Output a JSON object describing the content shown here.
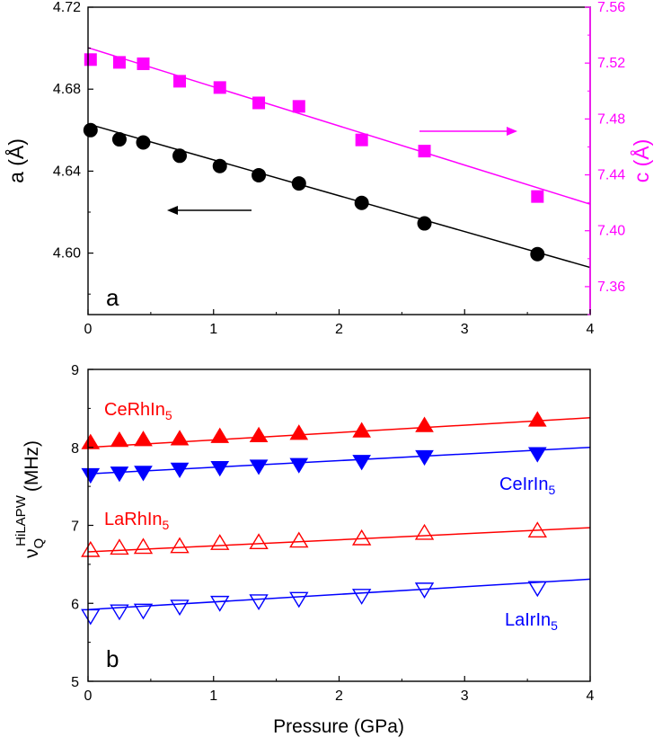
{
  "colors": {
    "black": "#000000",
    "magenta": "#ff00ff",
    "red": "#ff0000",
    "blue": "#0000ff"
  },
  "x_label": "Pressure (GPa)",
  "panel_a": {
    "label": "a",
    "left_label": "a (Å)",
    "right_label": "c (Å)",
    "left_ticks": [
      "4.60",
      "4.64",
      "4.68",
      "4.72"
    ],
    "right_ticks": [
      "7.36",
      "7.40",
      "7.44",
      "7.48",
      "7.52",
      "7.56"
    ]
  },
  "panel_b": {
    "label": "b",
    "y_label": "ν",
    "y_label_sub": "Q",
    "y_label_sup": "HiLAPW",
    "y_label_unit": "(MHz)",
    "y_ticks": [
      "5",
      "6",
      "7",
      "8",
      "9"
    ],
    "series_labels": {
      "cerhin5": {
        "base": "CeRhIn",
        "sub": "5"
      },
      "ceirin5": {
        "base": "CeIrIn",
        "sub": "5"
      },
      "larhin5": {
        "base": "LaRhIn",
        "sub": "5"
      },
      "lairin5": {
        "base": "LaIrIn",
        "sub": "5"
      }
    }
  },
  "x_ticks": [
    "0",
    "1",
    "2",
    "3",
    "4"
  ],
  "chart_data": [
    {
      "type": "scatter",
      "title": "",
      "xlabel": "Pressure (GPa)",
      "ylabel": "a (Å)",
      "y2label": "c (Å)",
      "xlim": [
        0,
        4
      ],
      "ylim": [
        4.57,
        4.72
      ],
      "y2lim": [
        7.34,
        7.56
      ],
      "x": [
        0.02,
        0.25,
        0.44,
        0.73,
        1.05,
        1.36,
        1.68,
        2.18,
        2.68,
        3.58
      ],
      "series": [
        {
          "axis": "left",
          "marker": "circle",
          "color": "#000000",
          "values": [
            4.66,
            4.6555,
            4.654,
            4.6475,
            4.6425,
            4.638,
            4.634,
            4.6245,
            4.6145,
            4.5995
          ],
          "fit": [
            [
              0,
              4.663
            ],
            [
              4,
              4.593
            ]
          ]
        },
        {
          "axis": "right",
          "marker": "square",
          "color": "#ff00ff",
          "values": [
            7.5225,
            7.5205,
            7.5195,
            7.507,
            7.5025,
            7.4915,
            7.489,
            7.465,
            7.457,
            7.4245
          ],
          "fit": [
            [
              0,
              7.531
            ],
            [
              4,
              7.419
            ]
          ]
        }
      ],
      "annotations": [
        "a"
      ]
    },
    {
      "type": "scatter",
      "title": "",
      "xlabel": "Pressure (GPa)",
      "ylabel": "ν_Q^HiLAPW (MHz)",
      "xlim": [
        0,
        4
      ],
      "ylim": [
        5,
        9
      ],
      "x": [
        0.02,
        0.25,
        0.44,
        0.73,
        1.05,
        1.36,
        1.68,
        2.18,
        2.68,
        3.58
      ],
      "series": [
        {
          "name": "CeRhIn5",
          "marker": "triangle-up-filled",
          "color": "#ff0000",
          "values": [
            8.06,
            8.09,
            8.1,
            8.11,
            8.14,
            8.15,
            8.18,
            8.21,
            8.28,
            8.35
          ],
          "fit": [
            [
              0,
              8.0
            ],
            [
              4,
              8.38
            ]
          ]
        },
        {
          "name": "CeIrIn5",
          "marker": "triangle-down-filled",
          "color": "#0000ff",
          "values": [
            7.65,
            7.67,
            7.68,
            7.72,
            7.74,
            7.76,
            7.78,
            7.82,
            7.88,
            7.92
          ],
          "fit": [
            [
              0,
              7.66
            ],
            [
              4,
              8.0
            ]
          ]
        },
        {
          "name": "LaRhIn5",
          "marker": "triangle-up-open",
          "color": "#ff0000",
          "values": [
            6.68,
            6.71,
            6.72,
            6.73,
            6.77,
            6.78,
            6.8,
            6.83,
            6.9,
            6.93
          ],
          "fit": [
            [
              0,
              6.66
            ],
            [
              4,
              6.97
            ]
          ]
        },
        {
          "name": "LaIrIn5",
          "marker": "triangle-down-open",
          "color": "#0000ff",
          "values": [
            5.84,
            5.9,
            5.91,
            5.96,
            6.01,
            6.03,
            6.06,
            6.1,
            6.18,
            6.2
          ],
          "fit": [
            [
              0,
              5.92
            ],
            [
              4,
              6.31
            ]
          ]
        }
      ],
      "annotations": [
        "b"
      ]
    }
  ]
}
